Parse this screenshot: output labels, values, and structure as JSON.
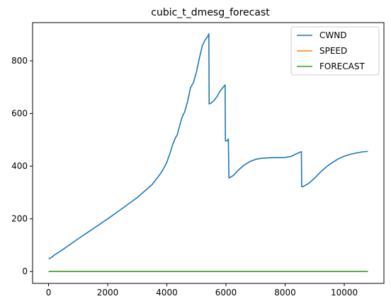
{
  "chart_data": {
    "type": "line",
    "title": "cubic_t_dmesg_forecast",
    "xlabel": "",
    "ylabel": "",
    "xlim": [
      -540,
      11340
    ],
    "ylim": [
      -45,
      945
    ],
    "xticks": [
      0,
      2000,
      4000,
      6000,
      8000,
      10000
    ],
    "yticks": [
      0,
      200,
      400,
      600,
      800
    ],
    "grid": false,
    "legend": "top-right",
    "series": [
      {
        "name": "CWND",
        "color": "#1f77b4",
        "points": [
          [
            0,
            50
          ],
          [
            50,
            50
          ],
          [
            100,
            54
          ],
          [
            150,
            58
          ],
          [
            200,
            63
          ],
          [
            500,
            85
          ],
          [
            1000,
            124
          ],
          [
            1500,
            162
          ],
          [
            2000,
            200
          ],
          [
            2500,
            240
          ],
          [
            3000,
            281
          ],
          [
            3500,
            330
          ],
          [
            3800,
            374
          ],
          [
            3900,
            393
          ],
          [
            4000,
            415
          ],
          [
            4100,
            447
          ],
          [
            4200,
            483
          ],
          [
            4300,
            510
          ],
          [
            4350,
            518
          ],
          [
            4400,
            540
          ],
          [
            4500,
            580
          ],
          [
            4550,
            595
          ],
          [
            4600,
            605
          ],
          [
            4700,
            645
          ],
          [
            4800,
            698
          ],
          [
            4900,
            718
          ],
          [
            5000,
            757
          ],
          [
            5100,
            810
          ],
          [
            5200,
            858
          ],
          [
            5300,
            880
          ],
          [
            5400,
            895
          ],
          [
            5420,
            903
          ],
          [
            5430,
            636
          ],
          [
            5500,
            640
          ],
          [
            5600,
            650
          ],
          [
            5700,
            665
          ],
          [
            5800,
            685
          ],
          [
            5950,
            706
          ],
          [
            5970,
            708
          ],
          [
            5980,
            496
          ],
          [
            6050,
            497
          ],
          [
            6080,
            503
          ],
          [
            6100,
            355
          ],
          [
            6150,
            358
          ],
          [
            6250,
            365
          ],
          [
            6400,
            383
          ],
          [
            6600,
            403
          ],
          [
            6800,
            417
          ],
          [
            7000,
            426
          ],
          [
            7200,
            430
          ],
          [
            7500,
            432
          ],
          [
            8000,
            433
          ],
          [
            8200,
            437
          ],
          [
            8400,
            448
          ],
          [
            8550,
            455
          ],
          [
            8560,
            322
          ],
          [
            8600,
            322
          ],
          [
            8800,
            335
          ],
          [
            9000,
            355
          ],
          [
            9200,
            378
          ],
          [
            9400,
            398
          ],
          [
            9600,
            414
          ],
          [
            9800,
            428
          ],
          [
            10000,
            438
          ],
          [
            10200,
            445
          ],
          [
            10400,
            450
          ],
          [
            10600,
            454
          ],
          [
            10800,
            456
          ]
        ]
      },
      {
        "name": "SPEED",
        "color": "#ff7f0e",
        "points": [
          [
            0,
            0
          ],
          [
            10800,
            0
          ]
        ]
      },
      {
        "name": "FORECAST",
        "color": "#2ca02c",
        "points": [
          [
            0,
            0
          ],
          [
            10800,
            0
          ]
        ]
      }
    ]
  }
}
